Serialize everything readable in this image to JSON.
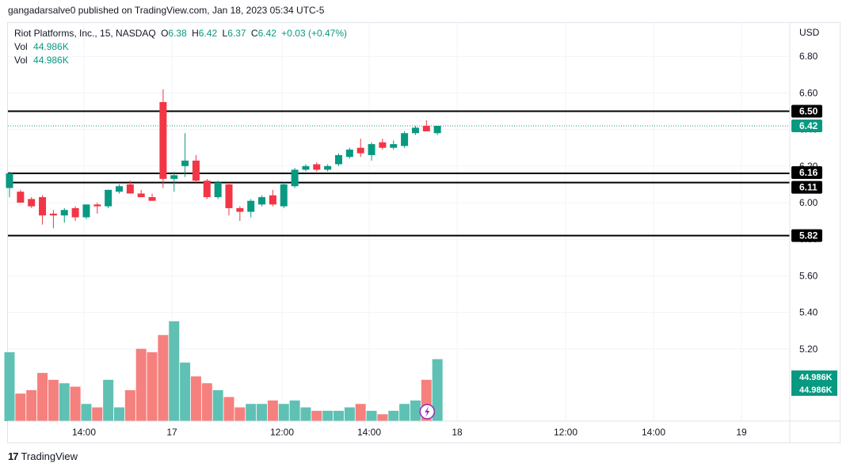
{
  "header": {
    "published": "gangadarsalve0 published on TradingView.com, Jan 18, 2023 05:34 UTC-5"
  },
  "legend": {
    "symbol": "Riot Platforms, Inc., 15, NASDAQ",
    "o_label": "O",
    "o_value": "6.38",
    "h_label": "H",
    "h_value": "6.42",
    "l_label": "L",
    "l_value": "6.37",
    "c_label": "C",
    "c_value": "6.42",
    "change": "+0.03 (+0.47%)",
    "vol_label_1": "Vol",
    "vol_value_1": "44.986K",
    "vol_label_2": "Vol",
    "vol_value_2": "44.986K"
  },
  "axis": {
    "currency": "USD"
  },
  "footer": {
    "brand": "TradingView"
  },
  "colors": {
    "up": "#089981",
    "down": "#f23645",
    "vol_up": "#5fc1b3",
    "vol_down": "#f5807d",
    "price_line": "#089981"
  },
  "chart_data": {
    "type": "candlestick",
    "symbol": "RIOT",
    "interval": "15",
    "y_ticks": [
      5.2,
      5.4,
      5.6,
      5.8,
      6.0,
      6.2,
      6.4,
      6.6,
      6.8
    ],
    "x_tick_labels": [
      "14:00",
      "17",
      "12:00",
      "14:00",
      "18",
      "12:00",
      "14:00",
      "19"
    ],
    "horizontal_levels": [
      6.5,
      6.16,
      6.11,
      5.82
    ],
    "level_labels": [
      "6.50",
      "6.16",
      "6.11",
      "5.82"
    ],
    "last_price": 6.42,
    "last_price_label": "6.42",
    "volume_labels": [
      "44.986K",
      "44.986K"
    ],
    "candles": [
      {
        "o": 6.08,
        "h": 6.17,
        "l": 6.03,
        "c": 6.16,
        "v": 20
      },
      {
        "o": 6.06,
        "h": 6.07,
        "l": 6.0,
        "c": 6.0,
        "v": 8
      },
      {
        "o": 6.02,
        "h": 6.03,
        "l": 5.97,
        "c": 5.98,
        "v": 9
      },
      {
        "o": 6.03,
        "h": 6.04,
        "l": 5.88,
        "c": 5.93,
        "v": 14
      },
      {
        "o": 5.94,
        "h": 5.96,
        "l": 5.86,
        "c": 5.93,
        "v": 12
      },
      {
        "o": 5.93,
        "h": 5.97,
        "l": 5.89,
        "c": 5.96,
        "v": 11
      },
      {
        "o": 5.97,
        "h": 5.98,
        "l": 5.9,
        "c": 5.92,
        "v": 10
      },
      {
        "o": 5.92,
        "h": 5.99,
        "l": 5.91,
        "c": 5.99,
        "v": 5
      },
      {
        "o": 5.99,
        "h": 6.0,
        "l": 5.94,
        "c": 5.98,
        "v": 4
      },
      {
        "o": 5.98,
        "h": 6.07,
        "l": 5.97,
        "c": 6.07,
        "v": 12
      },
      {
        "o": 6.06,
        "h": 6.1,
        "l": 6.05,
        "c": 6.09,
        "v": 4
      },
      {
        "o": 6.1,
        "h": 6.12,
        "l": 6.05,
        "c": 6.05,
        "v": 9
      },
      {
        "o": 6.05,
        "h": 6.07,
        "l": 6.03,
        "c": 6.03,
        "v": 21
      },
      {
        "o": 6.03,
        "h": 6.05,
        "l": 6.01,
        "c": 6.01,
        "v": 20
      },
      {
        "o": 6.55,
        "h": 6.62,
        "l": 6.08,
        "c": 6.13,
        "v": 25
      },
      {
        "o": 6.13,
        "h": 6.17,
        "l": 6.06,
        "c": 6.15,
        "v": 29
      },
      {
        "o": 6.2,
        "h": 6.38,
        "l": 6.14,
        "c": 6.23,
        "v": 17
      },
      {
        "o": 6.23,
        "h": 6.26,
        "l": 6.11,
        "c": 6.12,
        "v": 13
      },
      {
        "o": 6.12,
        "h": 6.13,
        "l": 6.02,
        "c": 6.03,
        "v": 11
      },
      {
        "o": 6.03,
        "h": 6.12,
        "l": 6.02,
        "c": 6.11,
        "v": 9
      },
      {
        "o": 6.1,
        "h": 6.11,
        "l": 5.93,
        "c": 5.97,
        "v": 7
      },
      {
        "o": 5.97,
        "h": 5.98,
        "l": 5.9,
        "c": 5.95,
        "v": 4
      },
      {
        "o": 5.95,
        "h": 6.02,
        "l": 5.92,
        "c": 6.01,
        "v": 5
      },
      {
        "o": 5.99,
        "h": 6.04,
        "l": 5.98,
        "c": 6.03,
        "v": 5
      },
      {
        "o": 6.04,
        "h": 6.07,
        "l": 5.98,
        "c": 5.99,
        "v": 6
      },
      {
        "o": 5.98,
        "h": 6.11,
        "l": 5.97,
        "c": 6.1,
        "v": 5
      },
      {
        "o": 6.09,
        "h": 6.19,
        "l": 6.08,
        "c": 6.18,
        "v": 6
      },
      {
        "o": 6.18,
        "h": 6.21,
        "l": 6.17,
        "c": 6.2,
        "v": 4
      },
      {
        "o": 6.21,
        "h": 6.22,
        "l": 6.17,
        "c": 6.18,
        "v": 3
      },
      {
        "o": 6.18,
        "h": 6.21,
        "l": 6.17,
        "c": 6.2,
        "v": 3
      },
      {
        "o": 6.21,
        "h": 6.27,
        "l": 6.2,
        "c": 6.26,
        "v": 3
      },
      {
        "o": 6.25,
        "h": 6.3,
        "l": 6.24,
        "c": 6.29,
        "v": 4
      },
      {
        "o": 6.3,
        "h": 6.35,
        "l": 6.25,
        "c": 6.27,
        "v": 5
      },
      {
        "o": 6.26,
        "h": 6.33,
        "l": 6.23,
        "c": 6.32,
        "v": 3
      },
      {
        "o": 6.33,
        "h": 6.35,
        "l": 6.29,
        "c": 6.3,
        "v": 2
      },
      {
        "o": 6.3,
        "h": 6.34,
        "l": 6.29,
        "c": 6.32,
        "v": 3
      },
      {
        "o": 6.31,
        "h": 6.39,
        "l": 6.3,
        "c": 6.38,
        "v": 5
      },
      {
        "o": 6.38,
        "h": 6.42,
        "l": 6.37,
        "c": 6.41,
        "v": 6
      },
      {
        "o": 6.42,
        "h": 6.45,
        "l": 6.39,
        "c": 6.39,
        "v": 12
      },
      {
        "o": 6.38,
        "h": 6.42,
        "l": 6.37,
        "c": 6.42,
        "v": 18
      }
    ]
  }
}
